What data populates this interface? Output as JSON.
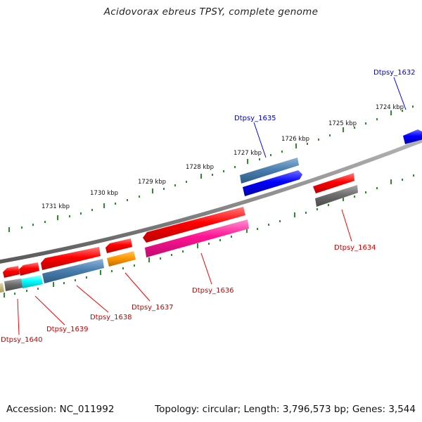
{
  "title": "Acidovorax ebreus TPSY, complete genome",
  "footer": {
    "accession": "Accession: NC_011992",
    "topology": "Topology: circular; Length: 3,796,573 bp; Genes: 3,544"
  },
  "colors": {
    "backbone": "#8c8c8c",
    "tick": "#2e8b2e",
    "label_forward": "#0000cc",
    "label_reverse": "#cc0000",
    "callout_forward": "#0000ff",
    "callout_reverse": "#ff0000"
  },
  "kbp_labels": [
    "1724 kbp",
    "1725 kbp",
    "1726 kbp",
    "1727 kbp",
    "1728 kbp",
    "1729 kbp",
    "1730 kbp",
    "1731 kbp"
  ],
  "gene_labels": {
    "dtpsy_1632": "Dtpsy_1632",
    "dtpsy_1634": "Dtpsy_1634",
    "dtpsy_1635": "Dtpsy_1635",
    "dtpsy_1636": "Dtpsy_1636",
    "dtpsy_1637": "Dtpsy_1637",
    "dtpsy_1638": "Dtpsy_1638",
    "dtpsy_1639": "Dtpsy_1639",
    "dtpsy_1640": "Dtpsy_1640"
  }
}
